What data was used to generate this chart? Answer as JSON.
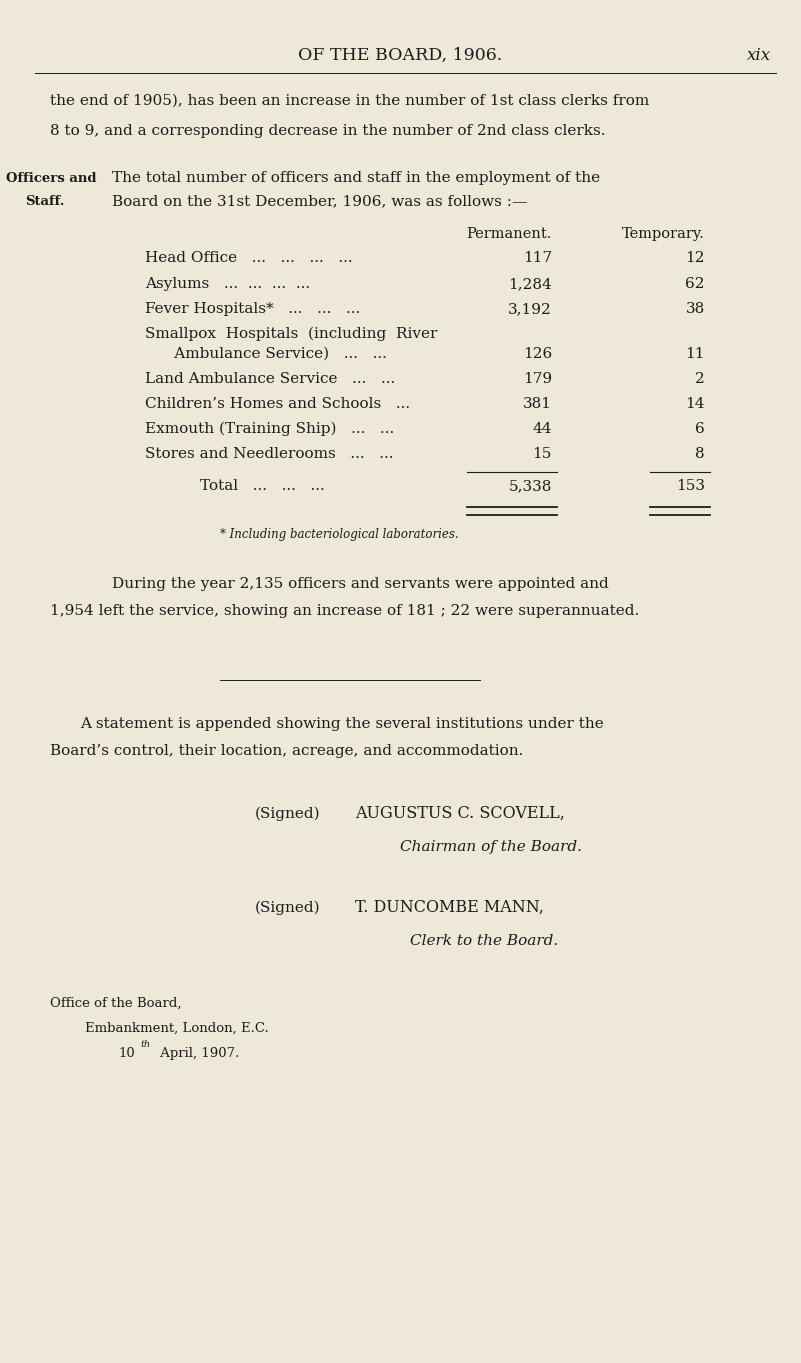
{
  "bg_color": "#ede8d8",
  "text_color": "#1c1c1c",
  "page_width": 8.01,
  "page_height": 13.63,
  "header_title": "OF THE BOARD, 1906.",
  "header_page_num": "xix",
  "para1_line1": "the end of 1905), has been an increase in the number of 1st class clerks from",
  "para1_line2": "8 to 9, and a corresponding decrease in the number of 2nd class clerks.",
  "margin_label_line1": "Officers and",
  "margin_label_line2": "Staff.",
  "intro_text_line1": "The total number of officers and staff in the employment of the",
  "intro_text_line2": "Board on the 31st December, 1906, was as follows :—",
  "col_header_perm": "Permanent.",
  "col_header_temp": "Temporary.",
  "table_rows": [
    {
      "label": "Head Office   ...   ...   ...   ...",
      "perm": "117",
      "temp": "12"
    },
    {
      "label": "Asylums   ...  ...  ...  ...",
      "perm": "1,284",
      "temp": "62"
    },
    {
      "label": "Fever Hospitals*   ...   ...   ...",
      "perm": "3,192",
      "temp": "38"
    },
    {
      "label": "Smallpox  Hospitals  (including  River",
      "perm": "",
      "temp": ""
    },
    {
      "label": "      Ambulance Service)   ...   ...",
      "perm": "126",
      "temp": "11"
    },
    {
      "label": "Land Ambulance Service   ...   ...",
      "perm": "179",
      "temp": "2"
    },
    {
      "label": "Children’s Homes and Schools   ...",
      "perm": "381",
      "temp": "14"
    },
    {
      "label": "Exmouth (Training Ship)   ...   ...",
      "perm": "44",
      "temp": "6"
    },
    {
      "label": "Stores and Needlerooms   ...   ...",
      "perm": "15",
      "temp": "8"
    }
  ],
  "total_label": "Total   ...   ...   ...",
  "total_perm": "5,338",
  "total_temp": "153",
  "footnote": "* Including bacteriological laboratories.",
  "para2_line1": "During the year 2,135 officers and servants were appointed and",
  "para2_line2": "1,954 left the service, showing an increase of 181 ; 22 were superannuated.",
  "para3_line1": "A statement is appended showing the several institutions under the",
  "para3_line2": "Board’s control, their location, acreage, and accommodation.",
  "signed1_label": "(Signed)",
  "signed1_name": "AUGUSTUS C. SCOVELL,",
  "signed1_title": "Chairman of the Board.",
  "signed2_label": "(Signed)",
  "signed2_name": "T. DUNCOMBE MANN,",
  "signed2_title": "Clerk to the Board.",
  "office_line1": "Office of the Board,",
  "office_line2": "Embankment, London, E.C.",
  "office_line3_normal": "10",
  "office_line3_super": "th",
  "office_line3_italic": " April",
  "office_line3_rest": ", 1907."
}
